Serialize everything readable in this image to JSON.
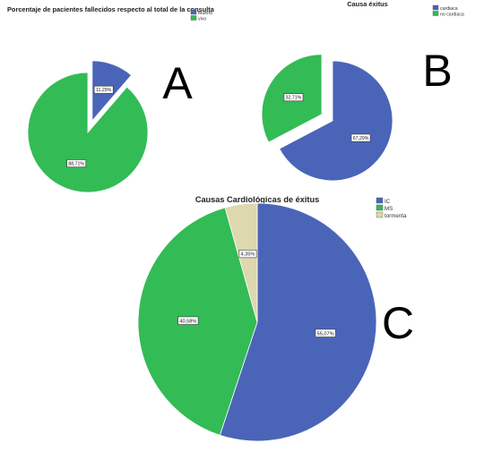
{
  "chart_data": [
    {
      "type": "pie",
      "panel": "A",
      "title": "Porcentaje de pacientes fallecidos respecto al total de la consulta",
      "legend": {
        "placement": "top-right"
      },
      "slices": [
        {
          "name": "Muerto",
          "value": 11.29,
          "label": "11,29%",
          "color": "#4a65b8",
          "exploded": true
        },
        {
          "name": "vivo",
          "value": 88.71,
          "label": "88,71%",
          "color": "#33bb55",
          "exploded": false
        }
      ]
    },
    {
      "type": "pie",
      "panel": "B",
      "title": "Causa éxitus",
      "legend": {
        "placement": "top-right"
      },
      "slices": [
        {
          "name": "cardiaca",
          "value": 67.29,
          "label": "67,29%",
          "color": "#4a65b8",
          "exploded": false
        },
        {
          "name": "no cardiaca",
          "value": 32.71,
          "label": "32,71%",
          "color": "#33bb55",
          "exploded": true
        }
      ]
    },
    {
      "type": "pie",
      "panel": "C",
      "title": "Causas Cardiológicas de éxitus",
      "legend": {
        "placement": "top-right"
      },
      "slices": [
        {
          "name": "IC",
          "value": 55.07,
          "label": "55,07%",
          "color": "#4a65b8",
          "exploded": false
        },
        {
          "name": "MS",
          "value": 40.58,
          "label": "40,58%",
          "color": "#33bb55",
          "exploded": false
        },
        {
          "name": "tormenta",
          "value": 4.35,
          "label": "4,35%",
          "color": "#ddd8ad",
          "exploded": false
        }
      ]
    }
  ]
}
